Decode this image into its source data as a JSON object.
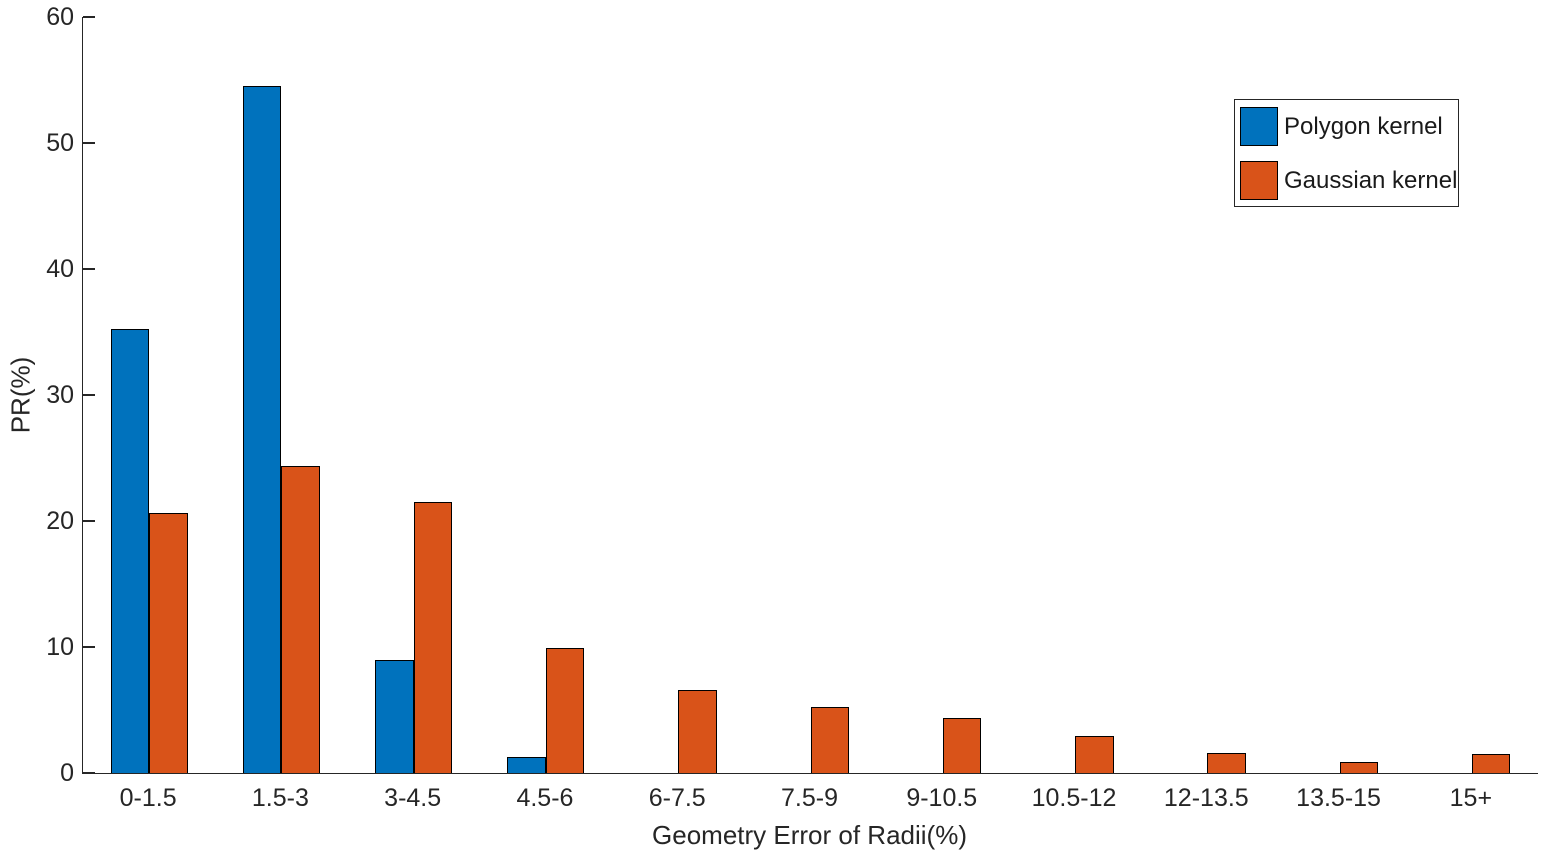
{
  "chart_data": {
    "type": "bar",
    "title": "",
    "xlabel": "Geometry Error of Radii(%)",
    "ylabel": "PR(%)",
    "categories": [
      "0-1.5",
      "1.5-3",
      "3-4.5",
      "4.5-6",
      "6-7.5",
      "7.5-9",
      "9-10.5",
      "10.5-12",
      "12-13.5",
      "13.5-15",
      "15+"
    ],
    "series": [
      {
        "name": "Polygon kernel",
        "color": "#0072BD",
        "values": [
          35.2,
          54.5,
          9.0,
          1.3,
          0,
          0,
          0,
          0,
          0,
          0,
          0
        ]
      },
      {
        "name": "Gaussian kernel",
        "color": "#D95319",
        "values": [
          20.6,
          24.4,
          21.5,
          9.9,
          6.6,
          5.2,
          4.4,
          2.9,
          1.6,
          0.9,
          1.5
        ]
      }
    ],
    "ylim": [
      0,
      60
    ],
    "yticks": [
      0,
      10,
      20,
      30,
      40,
      50,
      60
    ],
    "grid": false,
    "legend_position": "top-right",
    "axis_color": "#262626",
    "bar_edge_color": "#000000",
    "background": "#FFFFFF"
  }
}
